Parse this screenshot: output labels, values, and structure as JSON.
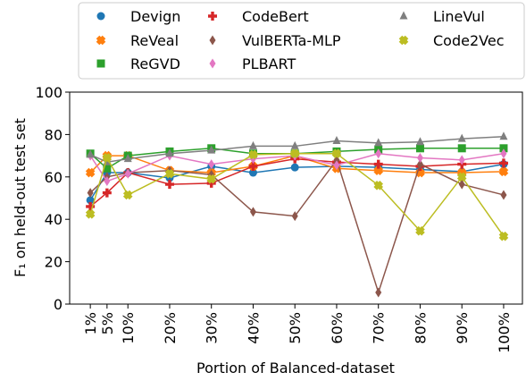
{
  "chart_data": {
    "type": "line",
    "xlabel": "Portion of Balanced-dataset",
    "ylabel": "F₁ on held-out test set",
    "x": [
      1,
      5,
      10,
      20,
      30,
      40,
      50,
      60,
      70,
      80,
      90,
      100
    ],
    "xlim": [
      -3.95,
      104.5
    ],
    "xticks": [
      {
        "value": 1,
        "label": "1%"
      },
      {
        "value": 5,
        "label": "5%"
      },
      {
        "value": 10,
        "label": "10%"
      },
      {
        "value": 20,
        "label": "20%"
      },
      {
        "value": 30,
        "label": "30%"
      },
      {
        "value": 40,
        "label": "40%"
      },
      {
        "value": 50,
        "label": "50%"
      },
      {
        "value": 60,
        "label": "60%"
      },
      {
        "value": 70,
        "label": "70%"
      },
      {
        "value": 80,
        "label": "80%"
      },
      {
        "value": 90,
        "label": "90%"
      },
      {
        "value": 100,
        "label": "100%"
      }
    ],
    "ylim": [
      0,
      100
    ],
    "yticks": [
      0,
      20,
      40,
      60,
      80,
      100
    ],
    "legend": "top",
    "series": [
      {
        "name": "Devign",
        "color": "#1f77b4",
        "marker": "circle",
        "values": [
          49,
          62,
          62,
          59.5,
          65,
          62,
          64.5,
          65,
          64.5,
          63.5,
          62.5,
          66
        ]
      },
      {
        "name": "ReVeal",
        "color": "#ff7f0e",
        "marker": "x",
        "values": [
          62,
          70,
          70,
          63,
          62,
          65,
          70,
          64,
          63,
          62,
          62,
          62.5
        ]
      },
      {
        "name": "ReGVD",
        "color": "#2ca02c",
        "marker": "square",
        "values": [
          71,
          64,
          70,
          72,
          73.5,
          71,
          71,
          72,
          73,
          73.5,
          73.5,
          73.5
        ]
      },
      {
        "name": "CodeBert",
        "color": "#d62728",
        "marker": "plus",
        "values": [
          46,
          52.5,
          62,
          56.5,
          57,
          65,
          68.5,
          67,
          66,
          65,
          66,
          66.5
        ]
      },
      {
        "name": "VulBERTa-MLP",
        "color": "#8c564b",
        "marker": "diamond",
        "values": [
          52.5,
          60,
          62,
          63,
          61,
          43.5,
          41.5,
          68,
          5.5,
          66,
          56.5,
          51.5
        ]
      },
      {
        "name": "PLBART",
        "color": "#e377c2",
        "marker": "diamond",
        "values": [
          70,
          58,
          61.5,
          70,
          66,
          68.5,
          70,
          65.5,
          71,
          69,
          68,
          71
        ]
      },
      {
        "name": "LineVul",
        "color": "#7f7f7f",
        "marker": "triangle",
        "values": [
          70.5,
          67,
          68.5,
          71,
          72.5,
          74.5,
          74.5,
          77,
          76,
          76.5,
          78,
          79
        ]
      },
      {
        "name": "Code2Vec",
        "color": "#bcbd22",
        "marker": "x",
        "values": [
          42.5,
          69,
          51.5,
          61.5,
          59,
          70.5,
          71,
          71,
          56,
          34.5,
          60,
          32
        ]
      }
    ]
  }
}
